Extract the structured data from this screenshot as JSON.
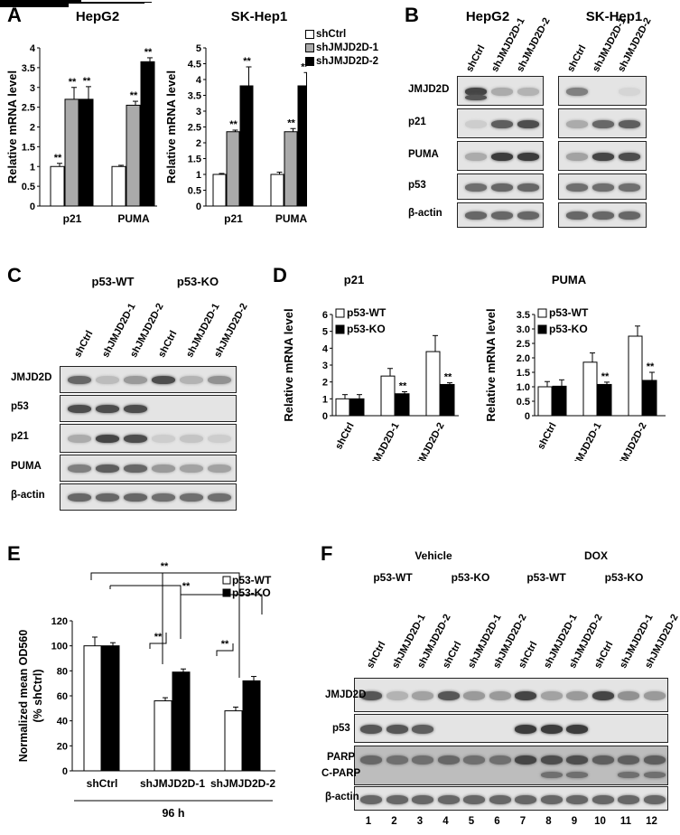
{
  "panels": {
    "A": {
      "label": "A",
      "chart_data": [
        {
          "type": "bar",
          "title": "HepG2",
          "ylabel": "Relative mRNA level",
          "categories": [
            "p21",
            "PUMA"
          ],
          "ylim": [
            0,
            4
          ],
          "yticks": [
            "0",
            "0.5",
            "1",
            "1.5",
            "2",
            "2.5",
            "3",
            "3.5",
            "4"
          ],
          "series": [
            {
              "name": "shCtrl",
              "values": [
                1.0,
                1.0
              ],
              "errors": [
                0.08,
                0.03
              ]
            },
            {
              "name": "shJMJD2D-1",
              "values": [
                2.7,
                2.55
              ],
              "errors": [
                0.3,
                0.1
              ]
            },
            {
              "name": "shJMJD2D-2",
              "values": [
                2.7,
                3.65
              ],
              "errors": [
                0.32,
                0.1
              ]
            }
          ],
          "significance": [
            [
              "**",
              "**",
              "**"
            ],
            [
              "",
              "**",
              "**"
            ]
          ]
        },
        {
          "type": "bar",
          "title": "SK-Hep1",
          "ylabel": "Relative mRNA level",
          "categories": [
            "p21",
            "PUMA"
          ],
          "ylim": [
            0,
            5
          ],
          "yticks": [
            "0",
            "0.5",
            "1",
            "1.5",
            "2",
            "2.5",
            "3",
            "3.5",
            "4",
            "4.5",
            "5"
          ],
          "series": [
            {
              "name": "shCtrl",
              "values": [
                1.0,
                1.0
              ],
              "errors": [
                0.03,
                0.07
              ]
            },
            {
              "name": "shJMJD2D-1",
              "values": [
                2.35,
                2.35
              ],
              "errors": [
                0.05,
                0.1
              ]
            },
            {
              "name": "shJMJD2D-2",
              "values": [
                3.8,
                3.8
              ],
              "errors": [
                0.6,
                0.42
              ]
            }
          ],
          "significance": [
            [
              "",
              "**",
              "**"
            ],
            [
              "",
              "**",
              "**"
            ]
          ]
        }
      ],
      "legend": [
        "shCtrl",
        "shJMJD2D-1",
        "shJMJD2D-2"
      ]
    },
    "B": {
      "label": "B",
      "cell_lines": [
        "HepG2",
        "SK-Hep1"
      ],
      "lanes": [
        "shCtrl",
        "shJMJD2D-1",
        "shJMJD2D-2"
      ],
      "rows": [
        "JMJD2D",
        "p21",
        "PUMA",
        "p53",
        "β-actin"
      ]
    },
    "C": {
      "label": "C",
      "groups": [
        "p53-WT",
        "p53-KO"
      ],
      "lanes": [
        "shCtrl",
        "shJMJD2D-1",
        "shJMJD2D-2",
        "shCtrl",
        "shJMJD2D-1",
        "shJMJD2D-2"
      ],
      "rows": [
        "JMJD2D",
        "p53",
        "p21",
        "PUMA",
        "β-actin"
      ]
    },
    "D": {
      "label": "D",
      "chart_data": [
        {
          "type": "bar",
          "title": "p21",
          "ylabel": "Relative mRNA level",
          "categories": [
            "shCtrl",
            "shJMJD2D-1",
            "shJMJD2D-2"
          ],
          "ylim": [
            0,
            6
          ],
          "yticks": [
            "0",
            "1",
            "2",
            "3",
            "4",
            "5",
            "6"
          ],
          "series": [
            {
              "name": "p53-WT",
              "values": [
                1.0,
                2.35,
                3.8
              ],
              "errors": [
                0.25,
                0.45,
                0.95
              ]
            },
            {
              "name": "p53-KO",
              "values": [
                1.0,
                1.3,
                1.85
              ],
              "errors": [
                0.25,
                0.12,
                0.1
              ]
            }
          ],
          "significance": [
            "",
            "**",
            "**"
          ]
        },
        {
          "type": "bar",
          "title": "PUMA",
          "ylabel": "Relative mRNA level",
          "categories": [
            "shCtrl",
            "shJMJD2D-1",
            "shJMJD2D-2"
          ],
          "ylim": [
            0,
            3.5
          ],
          "yticks": [
            "0",
            "0.5",
            "1.0",
            "1.5",
            "2.0",
            "2.5",
            "3.0",
            "3.5"
          ],
          "series": [
            {
              "name": "p53-WT",
              "values": [
                1.0,
                1.85,
                2.75
              ],
              "errors": [
                0.18,
                0.32,
                0.35
              ]
            },
            {
              "name": "p53-KO",
              "values": [
                1.02,
                1.08,
                1.22
              ],
              "errors": [
                0.22,
                0.08,
                0.28
              ]
            }
          ],
          "significance": [
            "",
            "**",
            "**"
          ]
        }
      ]
    },
    "E": {
      "label": "E",
      "chart_data": {
        "type": "bar",
        "ylabel": "Normalized mean OD560 (% shCtrl)",
        "ylabel_line1": "Normalized mean OD560",
        "ylabel_line2": "(% shCtrl)",
        "xlabel": "96 h",
        "categories": [
          "shCtrl",
          "shJMJD2D-1",
          "shJMJD2D-2"
        ],
        "ylim": [
          0,
          120
        ],
        "yticks": [
          "0",
          "20",
          "40",
          "60",
          "80",
          "100",
          "120"
        ],
        "series": [
          {
            "name": "p53-WT",
            "values": [
              100,
              56,
              48
            ],
            "errors": [
              7,
              2.5,
              3
            ]
          },
          {
            "name": "p53-KO",
            "values": [
              100,
              79,
              72
            ],
            "errors": [
              2.5,
              2.5,
              3.5
            ]
          }
        ],
        "significance_marks": [
          "**",
          "**",
          "**",
          "**"
        ]
      }
    },
    "F": {
      "label": "F",
      "treatments": [
        "Vehicle",
        "DOX"
      ],
      "groups": [
        "p53-WT",
        "p53-KO",
        "p53-WT",
        "p53-KO"
      ],
      "lanes": [
        "shCtrl",
        "shJMJD2D-1",
        "shJMJD2D-2",
        "shCtrl",
        "shJMJD2D-1",
        "shJMJD2D-2",
        "shCtrl",
        "shJMJD2D-1",
        "shJMJD2D-2",
        "shCtrl",
        "shJMJD2D-1",
        "shJMJD2D-2"
      ],
      "rows": [
        "JMJD2D",
        "p53",
        "PARP",
        "C-PARP",
        "β-actin"
      ],
      "lane_numbers": [
        "1",
        "2",
        "3",
        "4",
        "5",
        "6",
        "7",
        "8",
        "9",
        "10",
        "11",
        "12"
      ]
    }
  }
}
